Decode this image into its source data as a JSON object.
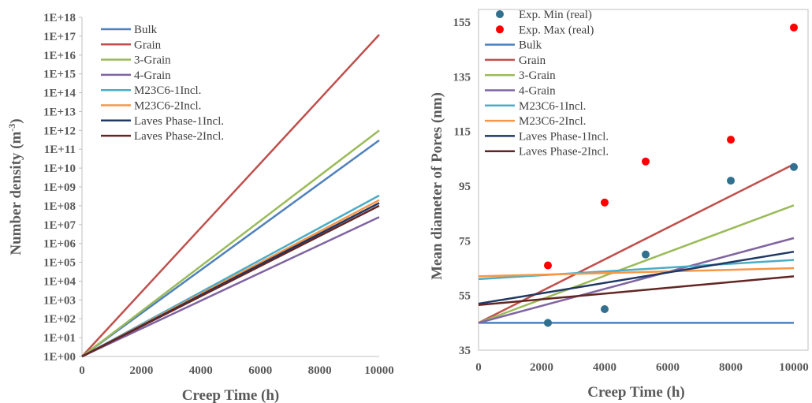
{
  "chart_data": [
    {
      "type": "line",
      "title": "",
      "xlabel": "Creep Time (h)",
      "ylabel": "Number density (m",
      "ylabel_sup": "-3",
      "ylabel_close": ")",
      "yscale": "log",
      "xlim": [
        0,
        10000
      ],
      "ylim": [
        1,
        1e+18
      ],
      "legend_position": "top-left",
      "x_ticks": [
        "0",
        "2000",
        "4000",
        "6000",
        "8000",
        "10000"
      ],
      "y_ticks": [
        "1E+00",
        "1E+01",
        "1E+02",
        "1E+03",
        "1E+04",
        "1E+05",
        "1E+06",
        "1E+07",
        "1E+08",
        "1E+09",
        "1E+10",
        "1E+11",
        "1E+12",
        "1E+13",
        "1E+14",
        "1E+15",
        "1E+16",
        "1E+17",
        "1E+18"
      ],
      "series": [
        {
          "name": "Bulk",
          "color": "#4f81bd",
          "x": [
            0,
            10000
          ],
          "y": [
            1,
            300000000000.0
          ]
        },
        {
          "name": "Grain",
          "color": "#c0504d",
          "x": [
            0,
            10000
          ],
          "y": [
            1,
            1.2e+17
          ]
        },
        {
          "name": "3-Grain",
          "color": "#9bbb59",
          "x": [
            0,
            10000
          ],
          "y": [
            1,
            1000000000000.0
          ]
        },
        {
          "name": "4-Grain",
          "color": "#8064a2",
          "x": [
            0,
            10000
          ],
          "y": [
            1,
            25000000.0
          ]
        },
        {
          "name": "M23C6-1Incl.",
          "color": "#4bacc6",
          "x": [
            0,
            10000
          ],
          "y": [
            1,
            350000000.0
          ]
        },
        {
          "name": "M23C6-2Incl.",
          "color": "#f79646",
          "x": [
            0,
            10000
          ],
          "y": [
            1,
            200000000.0
          ]
        },
        {
          "name": "Laves Phase-1Incl.",
          "color": "#1f3864",
          "x": [
            0,
            10000
          ],
          "y": [
            1,
            140000000.0
          ]
        },
        {
          "name": "Laves Phase-2Incl.",
          "color": "#632523",
          "x": [
            0,
            10000
          ],
          "y": [
            1,
            100000000.0
          ]
        }
      ]
    },
    {
      "type": "scatter+line",
      "title": "",
      "xlabel": "Creep Time (h)",
      "ylabel": "Mean diameter of Pores (nm)",
      "xlim": [
        0,
        10000
      ],
      "ylim": [
        35,
        155
      ],
      "legend_position": "top-left",
      "x_ticks": [
        "0",
        "2000",
        "4000",
        "6000",
        "8000",
        "10000"
      ],
      "y_ticks": [
        "35",
        "55",
        "75",
        "95",
        "115",
        "135",
        "155"
      ],
      "points": [
        {
          "name": "Exp. Min (real)",
          "color": "#31708f",
          "x": [
            2200,
            4000,
            5300,
            8000,
            10000
          ],
          "y": [
            45,
            50,
            70,
            97,
            102
          ]
        },
        {
          "name": "Exp. Max (real)",
          "color": "#ff0000",
          "x": [
            2200,
            4000,
            5300,
            8000,
            10000
          ],
          "y": [
            66,
            89,
            104,
            112,
            153
          ]
        }
      ],
      "series": [
        {
          "name": "Bulk",
          "color": "#4f81bd",
          "x": [
            0,
            10000
          ],
          "y": [
            45,
            45
          ]
        },
        {
          "name": "Grain",
          "color": "#c0504d",
          "x": [
            0,
            10000
          ],
          "y": [
            45,
            103
          ]
        },
        {
          "name": "3-Grain",
          "color": "#9bbb59",
          "x": [
            0,
            10000
          ],
          "y": [
            45,
            88
          ]
        },
        {
          "name": "4-Grain",
          "color": "#8064a2",
          "x": [
            0,
            10000
          ],
          "y": [
            45,
            76
          ]
        },
        {
          "name": "M23C6-1Incl.",
          "color": "#4bacc6",
          "x": [
            0,
            10000
          ],
          "y": [
            61,
            68
          ]
        },
        {
          "name": "M23C6-2Incl.",
          "color": "#f79646",
          "x": [
            0,
            10000
          ],
          "y": [
            62,
            65
          ]
        },
        {
          "name": "Laves Phase-1Incl.",
          "color": "#1f3864",
          "x": [
            0,
            10000
          ],
          "y": [
            52,
            71
          ]
        },
        {
          "name": "Laves Phase-2Incl.",
          "color": "#632523",
          "x": [
            0,
            10000
          ],
          "y": [
            51.5,
            62
          ]
        }
      ]
    }
  ]
}
